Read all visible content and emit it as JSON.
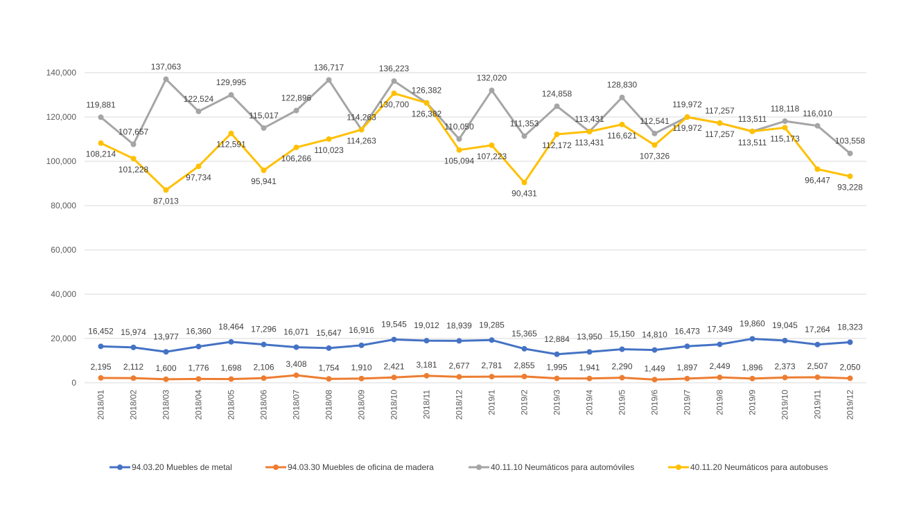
{
  "chart_data": {
    "type": "line",
    "title": "",
    "xlabel": "",
    "ylabel": "",
    "ylim": [
      0,
      140000
    ],
    "yticks": [
      0,
      20000,
      40000,
      60000,
      80000,
      100000,
      120000,
      140000
    ],
    "ytick_labels": [
      "0",
      "20,000",
      "40,000",
      "60,000",
      "80,000",
      "100,000",
      "120,000",
      "140,000"
    ],
    "grid": true,
    "legend_position": "bottom",
    "categories": [
      "2018/01",
      "2018/02",
      "2018/03",
      "2018/04",
      "2018/05",
      "2018/06",
      "2018/07",
      "2018/08",
      "2018/09",
      "2018/10",
      "2018/11",
      "2018/12",
      "2019/1",
      "2019/2",
      "2019/3",
      "2019/4",
      "2019/5",
      "2019/6",
      "2019/7",
      "2019/8",
      "2019/9",
      "2019/10",
      "2019/11",
      "2019/12"
    ],
    "series": [
      {
        "name": "94.03.20 Muebles de metal",
        "color": "#4472C4",
        "values": [
          16452,
          15974,
          13977,
          16360,
          18464,
          17296,
          16071,
          15647,
          16916,
          19545,
          19012,
          18939,
          19285,
          15365,
          12884,
          13950,
          15150,
          14810,
          16473,
          17349,
          19860,
          19045,
          17264,
          18323
        ],
        "labels": [
          "16,452",
          "15,974",
          "13,977",
          "16,360",
          "18,464",
          "17,296",
          "16,071",
          "15,647",
          "16,916",
          "19,545",
          "19,012",
          "18,939",
          "19,285",
          "15,365",
          "12,884",
          "13,950",
          "15,150",
          "14,810",
          "16,473",
          "17,349",
          "19,860",
          "19,045",
          "17,264",
          "18,323"
        ]
      },
      {
        "name": "94.03.30 Muebles de oficina de madera",
        "color": "#ED7D31",
        "values": [
          2195,
          2112,
          1600,
          1776,
          1698,
          2106,
          3408,
          1754,
          1910,
          2421,
          3181,
          2677,
          2781,
          2855,
          1995,
          1941,
          2290,
          1449,
          1897,
          2449,
          1896,
          2373,
          2507,
          2050
        ],
        "labels": [
          "2,195",
          "2,112",
          "1,600",
          "1,776",
          "1,698",
          "2,106",
          "3,408",
          "1,754",
          "1,910",
          "2,421",
          "3,181",
          "2,677",
          "2,781",
          "2,855",
          "1,995",
          "1,941",
          "2,290",
          "1,449",
          "1,897",
          "2,449",
          "1,896",
          "2,373",
          "2,507",
          "2,050"
        ]
      },
      {
        "name": "40.11.10 Neumáticos para automóviles",
        "color": "#A5A5A5",
        "values": [
          119881,
          107657,
          137063,
          122524,
          129995,
          115017,
          122896,
          136717,
          114263,
          136223,
          126382,
          110050,
          132020,
          111353,
          124858,
          113431,
          128830,
          112541,
          119972,
          117257,
          113511,
          118118,
          116010,
          103558
        ],
        "labels": [
          "119,881",
          "107,657",
          "137,063",
          "122,524",
          "129,995",
          "115,017",
          "122,896",
          "136,717",
          "114,263",
          "136,223",
          "126,382",
          "110,050",
          "132,020",
          "111,353",
          "124,858",
          "113,431",
          "128,830",
          "112,541",
          "119,972",
          "117,257",
          "113,511",
          "118,118",
          "116,010",
          "103,558"
        ]
      },
      {
        "name": "40.11.20 Neumáticos para autobuses",
        "color": "#FFC000",
        "values": [
          108214,
          101228,
          87013,
          97734,
          112591,
          95941,
          106266,
          110023,
          114263,
          130700,
          126382,
          105094,
          107223,
          90431,
          112172,
          113431,
          116621,
          107326,
          119972,
          117257,
          113511,
          115173,
          96447,
          93228
        ],
        "labels": [
          "108,214",
          "101,228",
          "87,013",
          "97,734",
          "112,591",
          "95,941",
          "106,266",
          "110,023",
          "114,263",
          "130,700",
          "126,382",
          "105,094",
          "107,223",
          "90,431",
          "112,172",
          "113,431",
          "116,621",
          "107,326",
          "119,972",
          "117,257",
          "113,511",
          "115,173",
          "96,447",
          "93,228"
        ]
      }
    ]
  }
}
